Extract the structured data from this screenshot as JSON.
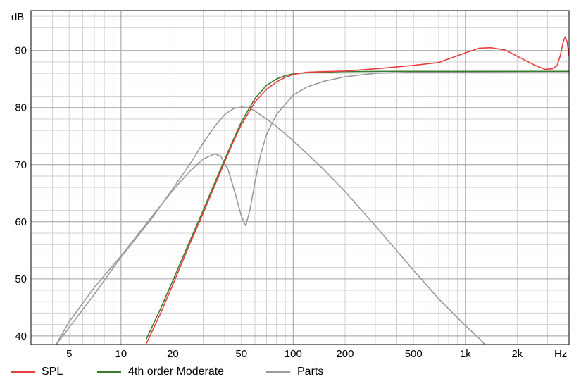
{
  "chart_data": {
    "type": "line",
    "x_scale": "log",
    "xlim": [
      3,
      4000
    ],
    "ylim": [
      38.5,
      97
    ],
    "x_unit_label": "Hz",
    "y_unit_label": "dB",
    "x_ticks": [
      {
        "value": 5,
        "label": "5"
      },
      {
        "value": 10,
        "label": "10"
      },
      {
        "value": 20,
        "label": "20"
      },
      {
        "value": 50,
        "label": "50"
      },
      {
        "value": 100,
        "label": "100"
      },
      {
        "value": 200,
        "label": "200"
      },
      {
        "value": 500,
        "label": "500"
      },
      {
        "value": 1000,
        "label": "1k"
      },
      {
        "value": 2000,
        "label": "2k"
      }
    ],
    "y_ticks": [
      40,
      50,
      60,
      70,
      80,
      90
    ],
    "grid": true,
    "legend_position": "bottom",
    "series": [
      {
        "name": "SPL",
        "color": "#e84040",
        "points": [
          [
            14,
            38.6
          ],
          [
            17,
            44
          ],
          [
            20,
            49
          ],
          [
            25,
            56
          ],
          [
            30,
            61.5
          ],
          [
            35,
            66.3
          ],
          [
            40,
            70.5
          ],
          [
            45,
            74.1
          ],
          [
            50,
            77
          ],
          [
            60,
            81
          ],
          [
            70,
            83.2
          ],
          [
            80,
            84.5
          ],
          [
            90,
            85.3
          ],
          [
            100,
            85.8
          ],
          [
            120,
            86.2
          ],
          [
            150,
            86.3
          ],
          [
            200,
            86.4
          ],
          [
            300,
            86.8
          ],
          [
            500,
            87.4
          ],
          [
            700,
            87.9
          ],
          [
            1000,
            89.6
          ],
          [
            1200,
            90.4
          ],
          [
            1400,
            90.5
          ],
          [
            1700,
            90.1
          ],
          [
            2000,
            89
          ],
          [
            2500,
            87.5
          ],
          [
            2900,
            86.7
          ],
          [
            3200,
            86.8
          ],
          [
            3400,
            87.3
          ],
          [
            3550,
            89
          ],
          [
            3700,
            91.5
          ],
          [
            3800,
            92.4
          ],
          [
            3900,
            91.5
          ],
          [
            4000,
            89
          ]
        ]
      },
      {
        "name": "4th order Moderate",
        "color": "#3a7d30",
        "points": [
          [
            14,
            39.4
          ],
          [
            17,
            44.8
          ],
          [
            20,
            49.7
          ],
          [
            25,
            56.5
          ],
          [
            30,
            62
          ],
          [
            35,
            66.8
          ],
          [
            40,
            70.9
          ],
          [
            45,
            74.4
          ],
          [
            50,
            77.5
          ],
          [
            60,
            81.6
          ],
          [
            70,
            83.9
          ],
          [
            80,
            85
          ],
          [
            90,
            85.6
          ],
          [
            100,
            85.9
          ],
          [
            120,
            86.1
          ],
          [
            150,
            86.2
          ],
          [
            200,
            86.3
          ],
          [
            400,
            86.35
          ],
          [
            4000,
            86.35
          ]
        ]
      },
      {
        "name": "Parts",
        "color": "#9a9a9a",
        "points": [
          [
            4.2,
            38.5
          ],
          [
            5,
            42.5
          ],
          [
            7,
            48.5
          ],
          [
            10,
            54
          ],
          [
            15,
            60.8
          ],
          [
            20,
            65.5
          ],
          [
            25,
            68.8
          ],
          [
            30,
            71
          ],
          [
            35,
            71.9
          ],
          [
            38,
            71.5
          ],
          [
            42,
            69
          ],
          [
            46,
            65
          ],
          [
            50,
            61
          ],
          [
            53,
            59.3
          ],
          [
            56,
            62
          ],
          [
            60,
            67
          ],
          [
            65,
            72
          ],
          [
            70,
            75.3
          ],
          [
            80,
            78.8
          ],
          [
            100,
            82.2
          ],
          [
            120,
            83.6
          ],
          [
            150,
            84.6
          ],
          [
            200,
            85.4
          ],
          [
            300,
            86
          ],
          [
            500,
            86.2
          ],
          [
            4000,
            86.3
          ]
        ]
      },
      {
        "name": "",
        "color": "#9a9a9a",
        "points": [
          [
            4.2,
            38.5
          ],
          [
            5,
            41.5
          ],
          [
            7,
            47.3
          ],
          [
            10,
            53.8
          ],
          [
            15,
            60.5
          ],
          [
            20,
            65.8
          ],
          [
            25,
            70
          ],
          [
            30,
            73.8
          ],
          [
            35,
            76.7
          ],
          [
            40,
            78.8
          ],
          [
            45,
            79.8
          ],
          [
            50,
            80.1
          ],
          [
            55,
            80
          ],
          [
            60,
            79.4
          ],
          [
            70,
            78
          ],
          [
            80,
            76.7
          ],
          [
            100,
            74.2
          ],
          [
            150,
            69.2
          ],
          [
            200,
            65.3
          ],
          [
            300,
            59.3
          ],
          [
            500,
            51.5
          ],
          [
            700,
            46.5
          ],
          [
            1000,
            41.8
          ],
          [
            1200,
            39.6
          ],
          [
            1300,
            38.5
          ]
        ]
      }
    ]
  },
  "legend": {
    "items": [
      {
        "label": "SPL",
        "color": "#e84040"
      },
      {
        "label": "4th order Moderate",
        "color": "#3a7d30"
      },
      {
        "label": "Parts",
        "color": "#9a9a9a"
      }
    ]
  }
}
